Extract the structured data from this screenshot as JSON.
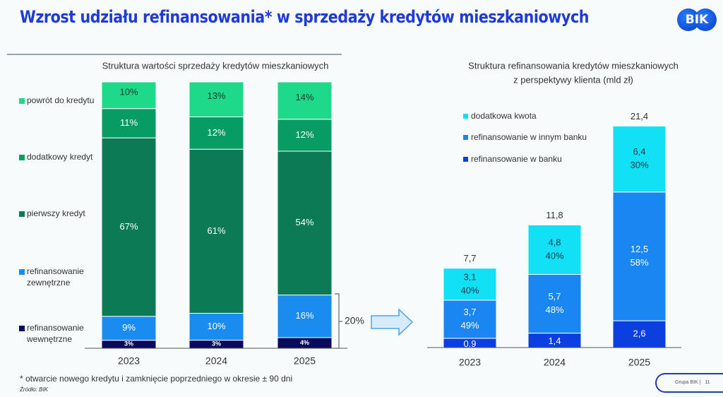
{
  "header": {
    "title": "Wzrost udziału refinansowania* w sprzedaży kredytów mieszkaniowych",
    "logo_text": "BIK"
  },
  "footer": {
    "footnote": "* otwarcie nowego kredytu i zamknięcie poprzedniego w okresie ± 90 dni",
    "source": "Źródło: BIK",
    "brand": "Grupa BIK |",
    "page_number": "11"
  },
  "annotations": {
    "bracket_label": "20%",
    "arrow": "right-arrow-icon"
  },
  "chart_data": [
    {
      "type": "bar",
      "stacked": true,
      "percent_stacked": true,
      "title": "Struktura wartości sprzedaży kredytów mieszkaniowych",
      "xlabel": "",
      "ylabel": "",
      "categories": [
        "2023",
        "2024",
        "2025"
      ],
      "ylim": [
        0,
        100
      ],
      "legend_position": "left",
      "series": [
        {
          "name": "refinansowanie wewnętrzne",
          "color": "#0a0a5c",
          "label_color": "#ffffff",
          "values": [
            3,
            3,
            4
          ],
          "labels": [
            "3%",
            "3%",
            "4%"
          ]
        },
        {
          "name": "refinansowanie zewnętrzne",
          "color": "#1a8cf0",
          "label_color": "#ffffff",
          "values": [
            9,
            10,
            16
          ],
          "labels": [
            "9%",
            "10%",
            "16%"
          ]
        },
        {
          "name": "pierwszy kredyt",
          "color": "#0b7a55",
          "label_color": "#ffffff",
          "values": [
            67,
            61,
            54
          ],
          "labels": [
            "67%",
            "61%",
            "54%"
          ]
        },
        {
          "name": "dodatkowy kredyt",
          "color": "#079c64",
          "label_color": "#ffffff",
          "values": [
            11,
            12,
            12
          ],
          "labels": [
            "11%",
            "12%",
            "12%"
          ]
        },
        {
          "name": "powrót do kredytu",
          "color": "#1ed98a",
          "label_color": "#1a3a2a",
          "values": [
            10,
            13,
            14
          ],
          "labels": [
            "10%",
            "13%",
            "14%"
          ]
        }
      ],
      "legend": [
        "powrót do kredytu",
        "dodatkowy kredyt",
        "pierwszy kredyt",
        "refinansowanie zewnętrzne",
        "refinansowanie wewnętrzne"
      ]
    },
    {
      "type": "bar",
      "stacked": true,
      "title": "Struktura refinansowania kredytów mieszkaniowych",
      "subtitle": "z perspektywy klienta (mld zł)",
      "xlabel": "",
      "ylabel": "mld zł",
      "categories": [
        "2023",
        "2024",
        "2025"
      ],
      "ylim": [
        0,
        21.4
      ],
      "totals": [
        7.7,
        11.8,
        21.4
      ],
      "total_labels": [
        "7,7",
        "11,8",
        "21,4"
      ],
      "legend_position": "top-left",
      "series": [
        {
          "name": "refinansowanie w banku",
          "color": "#0b3fe0",
          "label_color": "#ffffff",
          "values": [
            0.9,
            1.4,
            2.6
          ],
          "labels": [
            "0,9",
            "1,4",
            "2,6"
          ]
        },
        {
          "name": "refinansowanie w innym banku",
          "color": "#1a86f2",
          "label_color": "#ffffff",
          "values": [
            3.7,
            5.7,
            12.5
          ],
          "labels": [
            "3,7\n49%",
            "5,7\n48%",
            "12,5\n58%"
          ]
        },
        {
          "name": "dodatkowa kwota",
          "color": "#12e0f5",
          "label_color": "#1a3a4a",
          "values": [
            3.1,
            4.8,
            6.4
          ],
          "labels": [
            "3,1\n40%",
            "4,8\n40%",
            "6,4\n30%"
          ]
        }
      ],
      "legend": [
        "dodatkowa kwota",
        "refinansowanie w innym banku",
        "refinansowanie w banku"
      ]
    }
  ]
}
